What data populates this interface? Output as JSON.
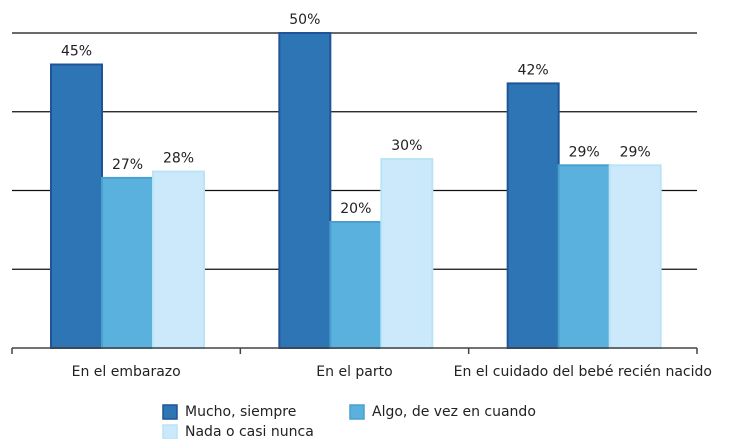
{
  "chart_data": {
    "type": "bar",
    "categories": [
      "En el embarazo",
      "En el parto",
      "En el cuidado del bebé recién nacido"
    ],
    "series": [
      {
        "name": "Mucho, siempre",
        "color": "#2e75b6",
        "values": [
          45,
          50,
          42
        ],
        "value_labels": [
          "45%",
          "50%",
          "42%"
        ]
      },
      {
        "name": "Algo, de vez en cuando",
        "color": "#5ab1de",
        "values": [
          27,
          20,
          29
        ],
        "value_labels": [
          "27%",
          "20%",
          "29%"
        ]
      },
      {
        "name": "Nada o casi nunca",
        "color": "#cce9fb",
        "values": [
          28,
          30,
          29
        ],
        "value_labels": [
          "28%",
          "30%",
          "29%"
        ]
      }
    ],
    "ylim": [
      0,
      50
    ],
    "yticks": [
      12.5,
      25,
      37.5,
      50
    ],
    "grid": true,
    "legend": "bottom"
  }
}
